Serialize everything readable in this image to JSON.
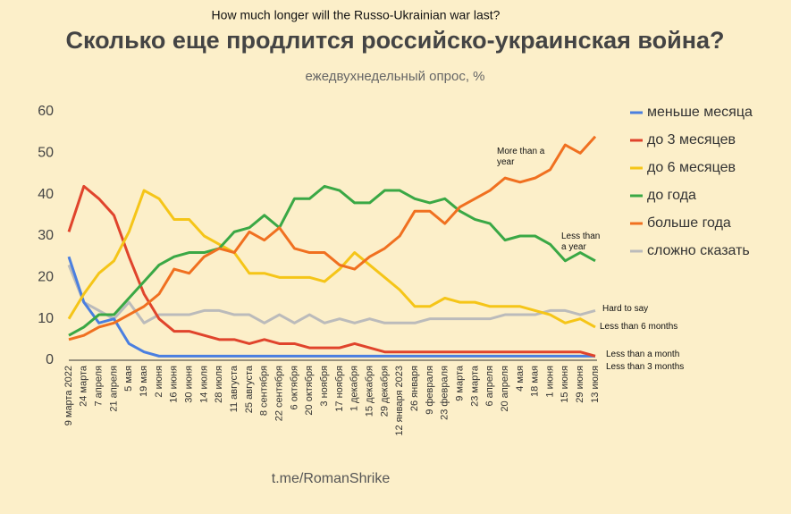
{
  "chart_data": {
    "type": "line",
    "title": "Сколько еще продлится российско-украинская война?",
    "top_title": "How much longer will the Russo-Ukrainian war last?",
    "subtitle": "ежедвухнедельный опрос, %",
    "source": "t.me/RomanShrike",
    "annotations": [
      "More than a year",
      "Less than a year",
      "Hard to say",
      "Less than 6 months",
      "Less than a month",
      "Less than 3 months"
    ],
    "categories": [
      "9 марта 2022",
      "24 марта",
      "7 апреля",
      "21 апреля",
      "5 мая",
      "19 мая",
      "2 июня",
      "16 июня",
      "30 июня",
      "14 июля",
      "28 июля",
      "11 августа",
      "25 августа",
      "8 сентября",
      "22 сентября",
      "6 октября",
      "20 октября",
      "3 ноября",
      "17 ноября",
      "1 декабря",
      "15 декабря",
      "29 декабря",
      "12 января 2023",
      "26 января",
      "9 февраля",
      "23 февраля",
      "9 марта",
      "23 марта",
      "6 апреля",
      "20 апреля",
      "4 мая",
      "18 мая",
      "1 июня",
      "15 июня",
      "29 июня",
      "13 июля"
    ],
    "series": [
      {
        "name": "меньше месяца",
        "color": "#4a7fe0",
        "values": [
          25,
          14,
          9,
          10,
          4,
          2,
          1,
          1,
          1,
          1,
          1,
          1,
          1,
          1,
          1,
          1,
          1,
          1,
          1,
          1,
          1,
          1,
          1,
          1,
          1,
          1,
          1,
          1,
          1,
          1,
          1,
          1,
          1,
          1,
          1,
          1
        ]
      },
      {
        "name": "до 3 месяцев",
        "color": "#e0442c",
        "values": [
          31,
          42,
          39,
          35,
          25,
          16,
          10,
          7,
          7,
          6,
          5,
          5,
          4,
          5,
          4,
          4,
          3,
          3,
          3,
          4,
          3,
          2,
          2,
          2,
          2,
          2,
          2,
          2,
          2,
          2,
          2,
          2,
          2,
          2,
          2,
          1
        ]
      },
      {
        "name": "до 6 месяцев",
        "color": "#f5c518",
        "values": [
          10,
          16,
          21,
          24,
          31,
          41,
          39,
          34,
          34,
          30,
          28,
          26,
          21,
          21,
          20,
          20,
          20,
          19,
          22,
          26,
          23,
          20,
          17,
          13,
          13,
          15,
          14,
          14,
          13,
          13,
          13,
          12,
          11,
          9,
          10,
          8
        ]
      },
      {
        "name": "до года",
        "color": "#3aa845",
        "values": [
          6,
          8,
          11,
          11,
          15,
          19,
          23,
          25,
          26,
          26,
          27,
          31,
          32,
          35,
          32,
          39,
          39,
          42,
          41,
          38,
          38,
          41,
          41,
          39,
          38,
          39,
          36,
          34,
          33,
          29,
          30,
          30,
          28,
          24,
          26,
          24
        ]
      },
      {
        "name": "больше года",
        "color": "#f07020",
        "values": [
          5,
          6,
          8,
          9,
          11,
          13,
          16,
          22,
          21,
          25,
          27,
          26,
          31,
          29,
          32,
          27,
          26,
          26,
          23,
          22,
          25,
          27,
          30,
          36,
          36,
          33,
          37,
          39,
          41,
          44,
          43,
          44,
          46,
          52,
          50,
          54
        ]
      },
      {
        "name": "сложно сказать",
        "color": "#bbbbbb",
        "values": [
          23,
          14,
          12,
          10,
          14,
          9,
          11,
          11,
          11,
          12,
          12,
          11,
          11,
          9,
          11,
          9,
          11,
          9,
          10,
          9,
          10,
          9,
          9,
          9,
          10,
          10,
          10,
          10,
          10,
          11,
          11,
          11,
          12,
          12,
          11,
          12
        ]
      }
    ],
    "ylim": [
      0,
      60
    ],
    "yticks": [
      0,
      10,
      20,
      30,
      40,
      50,
      60
    ],
    "grid": false
  }
}
